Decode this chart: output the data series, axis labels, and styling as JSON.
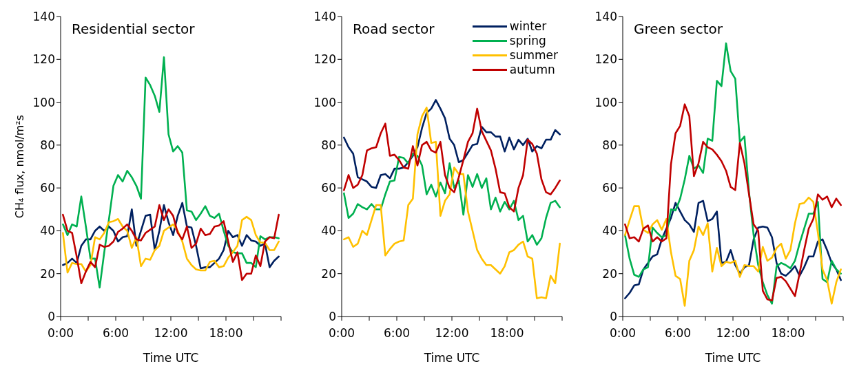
{
  "chart_data": [
    {
      "type": "line",
      "title": "Residential sector",
      "xlabel": "Time UTC",
      "ylabel": "CH₄ flux, nmol/m²s",
      "xlim": [
        0,
        24
      ],
      "ylim": [
        0,
        140
      ],
      "yticks": [
        0,
        20,
        40,
        60,
        80,
        100,
        120,
        140
      ],
      "xticks": [
        {
          "value": 0,
          "label": "0:00"
        },
        {
          "value": 3,
          "label": null
        },
        {
          "value": 6,
          "label": "6:00"
        },
        {
          "value": 9,
          "label": null
        },
        {
          "value": 12,
          "label": "12:00"
        },
        {
          "value": 15,
          "label": null
        },
        {
          "value": 18,
          "label": "18:00"
        },
        {
          "value": 21,
          "label": null
        },
        {
          "value": 24,
          "label": null
        }
      ],
      "x": [
        0.25,
        0.75,
        1.25,
        1.75,
        2.25,
        2.75,
        3.25,
        3.75,
        4.25,
        4.75,
        5.25,
        5.75,
        6.25,
        6.75,
        7.25,
        7.75,
        8.25,
        8.75,
        9.25,
        9.75,
        10.25,
        10.75,
        11.25,
        11.75,
        12.25,
        12.75,
        13.25,
        13.75,
        14.25,
        14.75,
        15.25,
        15.75,
        16.25,
        16.75,
        17.25,
        17.75,
        18.25,
        18.75,
        19.25,
        19.75,
        20.25,
        20.75,
        21.25,
        21.75,
        22.25,
        22.75,
        23.25,
        23.75
      ],
      "legend": false,
      "series": [
        {
          "color": "#002060",
          "values": [
            24,
            25,
            27,
            25,
            33,
            36,
            36,
            40,
            42,
            40,
            42,
            40,
            35,
            37,
            37.5,
            50,
            33,
            40,
            47,
            47.5,
            31,
            40,
            52,
            44,
            38,
            47,
            53,
            42,
            41.5,
            33,
            22.5,
            23,
            23,
            25,
            27,
            31,
            40,
            37,
            38,
            33,
            38,
            35.5,
            35,
            33,
            34,
            23,
            26,
            28
          ]
        },
        {
          "color": "#00b050",
          "values": [
            43,
            38,
            43,
            42,
            56,
            42,
            27,
            27,
            13.5,
            30,
            45,
            61,
            66,
            63,
            68,
            65,
            61,
            55,
            111.5,
            108,
            103,
            95.5,
            121,
            85,
            77,
            79.5,
            76.5,
            49.5,
            49,
            45,
            48,
            51.5,
            47,
            46,
            48,
            40,
            33,
            30,
            29.5,
            29.5,
            25,
            25,
            23,
            37.5,
            36,
            37,
            37,
            36.5
          ]
        },
        {
          "color": "#ffc000",
          "values": [
            39,
            20.5,
            25,
            24.5,
            24.5,
            21,
            24,
            37,
            36,
            39,
            44,
            44.5,
            45.5,
            42,
            40,
            32,
            37,
            23.5,
            27,
            26.5,
            31,
            33,
            40,
            41.5,
            43,
            40,
            35,
            27,
            24,
            22,
            21.5,
            21.5,
            25.5,
            26,
            23,
            23.5,
            27.5,
            30,
            33,
            45,
            46.5,
            45,
            38,
            34.5,
            34.5,
            31,
            31,
            35
          ]
        },
        {
          "color": "#c00000",
          "values": [
            47.5,
            40,
            39,
            28,
            15.5,
            21,
            25.5,
            23,
            33.5,
            32.5,
            33,
            35,
            39.5,
            41,
            43,
            40,
            36,
            35.5,
            39,
            40.5,
            42,
            52,
            45,
            50,
            47,
            39,
            36,
            42,
            32,
            34,
            41,
            38,
            38.5,
            42,
            42.5,
            44.5,
            35,
            25.5,
            30,
            17,
            20,
            20,
            28.5,
            23.5,
            35,
            37,
            36.5,
            47.5
          ]
        }
      ]
    },
    {
      "type": "line",
      "title": "Road sector",
      "xlabel": "Time UTC",
      "xlim": [
        0,
        24
      ],
      "ylim": [
        0,
        140
      ],
      "yticks": [
        0,
        20,
        40,
        60,
        80,
        100,
        120,
        140
      ],
      "xticks": [
        {
          "value": 0,
          "label": "0:00"
        },
        {
          "value": 3,
          "label": null
        },
        {
          "value": 6,
          "label": "6:00"
        },
        {
          "value": 9,
          "label": null
        },
        {
          "value": 12,
          "label": "12:00"
        },
        {
          "value": 15,
          "label": null
        },
        {
          "value": 18,
          "label": "18:00"
        },
        {
          "value": 21,
          "label": null
        },
        {
          "value": 24,
          "label": null
        }
      ],
      "x": [
        0.25,
        0.75,
        1.25,
        1.75,
        2.25,
        2.75,
        3.25,
        3.75,
        4.25,
        4.75,
        5.25,
        5.75,
        6.25,
        6.75,
        7.25,
        7.75,
        8.25,
        8.75,
        9.25,
        9.75,
        10.25,
        10.75,
        11.25,
        11.75,
        12.25,
        12.75,
        13.25,
        13.75,
        14.25,
        14.75,
        15.25,
        15.75,
        16.25,
        16.75,
        17.25,
        17.75,
        18.25,
        18.75,
        19.25,
        19.75,
        20.25,
        20.75,
        21.25,
        21.75,
        22.25,
        22.75,
        23.25,
        23.75
      ],
      "legend": "top right",
      "series": [
        {
          "name": "winter",
          "color": "#002060",
          "values": [
            83.5,
            79,
            76,
            65,
            64,
            63,
            60.5,
            60,
            66,
            66.5,
            64.5,
            69,
            69,
            69.5,
            72,
            75,
            79,
            88,
            95,
            97,
            101,
            97,
            92.5,
            83,
            80,
            72,
            73,
            76.5,
            80,
            80.5,
            88.5,
            86,
            86,
            84,
            84,
            77,
            83.5,
            78,
            82.5,
            80,
            83,
            77,
            79.5,
            78.5,
            82.5,
            82.5,
            87,
            85
          ]
        },
        {
          "name": "spring",
          "color": "#00b050",
          "values": [
            57.5,
            46,
            48,
            52.5,
            51,
            50,
            52.5,
            50,
            50,
            57,
            63,
            63.5,
            74.5,
            74,
            71.5,
            76,
            75,
            70.5,
            57,
            61.5,
            56,
            62.5,
            57.5,
            71.5,
            60,
            63.5,
            47.5,
            66,
            60.5,
            66.5,
            60,
            64.5,
            50,
            55.5,
            49,
            53.5,
            50,
            54,
            45,
            47,
            35,
            38,
            33.5,
            36.5,
            46,
            53,
            54,
            51
          ]
        },
        {
          "name": "summer",
          "color": "#ffc000",
          "values": [
            36,
            37,
            32.5,
            34,
            40,
            38,
            45,
            52,
            52,
            28.5,
            31.5,
            34,
            35,
            35.5,
            52,
            55,
            85,
            93.5,
            97.5,
            81,
            81.5,
            47,
            54,
            57,
            69.5,
            66.5,
            66.5,
            49,
            40,
            31,
            27,
            24,
            24,
            22,
            20,
            23.5,
            30,
            31,
            33.5,
            35,
            28,
            27,
            8.5,
            9,
            8.5,
            19,
            15.5,
            34
          ]
        },
        {
          "name": "autumn",
          "color": "#c00000",
          "values": [
            59,
            66,
            60,
            61.5,
            66,
            77.5,
            78.5,
            79,
            85.5,
            90,
            75,
            75.5,
            73,
            69.5,
            69,
            79.5,
            70.5,
            80,
            81.5,
            77.5,
            76.5,
            81.5,
            66,
            60,
            58,
            65,
            73,
            81.5,
            85.5,
            97,
            86.5,
            82,
            77.5,
            69,
            58,
            57.5,
            51,
            49,
            60,
            66,
            82.5,
            80.5,
            76,
            64,
            58,
            57,
            60,
            63.5
          ]
        }
      ]
    },
    {
      "type": "line",
      "title": "Green sector",
      "xlabel": "Time UTC",
      "xlim": [
        0,
        24
      ],
      "ylim": [
        0,
        140
      ],
      "yticks": [
        0,
        20,
        40,
        60,
        80,
        100,
        120,
        140
      ],
      "xticks": [
        {
          "value": 0,
          "label": "0:00"
        },
        {
          "value": 3,
          "label": null
        },
        {
          "value": 6,
          "label": "6:00"
        },
        {
          "value": 9,
          "label": null
        },
        {
          "value": 12,
          "label": "12:00"
        },
        {
          "value": 15,
          "label": null
        },
        {
          "value": 18,
          "label": "18:00"
        },
        {
          "value": 21,
          "label": null
        },
        {
          "value": 24,
          "label": null
        }
      ],
      "x": [
        0.25,
        0.75,
        1.25,
        1.75,
        2.25,
        2.75,
        3.25,
        3.75,
        4.25,
        4.75,
        5.25,
        5.75,
        6.25,
        6.75,
        7.25,
        7.75,
        8.25,
        8.75,
        9.25,
        9.75,
        10.25,
        10.75,
        11.25,
        11.75,
        12.25,
        12.75,
        13.25,
        13.75,
        14.25,
        14.75,
        15.25,
        15.75,
        16.25,
        16.75,
        17.25,
        17.75,
        18.25,
        18.75,
        19.25,
        19.75,
        20.25,
        20.75,
        21.25,
        21.75,
        22.25,
        22.75,
        23.25,
        23.75
      ],
      "legend": false,
      "series": [
        {
          "color": "#002060",
          "values": [
            8.5,
            11,
            14.5,
            15,
            22,
            25,
            28,
            29,
            36,
            41,
            46,
            53,
            49,
            45,
            43,
            39.5,
            53,
            54,
            44.5,
            45.5,
            49,
            25,
            25.5,
            31,
            24,
            20,
            23,
            24,
            36,
            41.5,
            42,
            41.5,
            37,
            25,
            20,
            19,
            21,
            23.5,
            19,
            23,
            28,
            28,
            35,
            36,
            31,
            25,
            22,
            17
          ]
        },
        {
          "color": "#00b050",
          "values": [
            38,
            27,
            19.5,
            18.5,
            22,
            23,
            41.5,
            39,
            37,
            38,
            50,
            49.5,
            55,
            64,
            75,
            69,
            70.5,
            67,
            83,
            82,
            110,
            107.5,
            127.5,
            114.5,
            111,
            81.5,
            84,
            58,
            38,
            24,
            16,
            10,
            6,
            23.5,
            25,
            24,
            22.5,
            26,
            34,
            41,
            48,
            48,
            53.5,
            17.5,
            16,
            26,
            22,
            20
          ]
        },
        {
          "color": "#ffc000",
          "values": [
            38,
            45,
            51.5,
            51.5,
            40.5,
            39,
            43,
            45,
            40.5,
            45.5,
            30,
            19,
            17.5,
            5,
            26,
            31,
            42,
            38,
            43.5,
            21,
            32,
            23.5,
            25.5,
            25,
            26,
            18.5,
            24,
            23.5,
            23.5,
            21,
            32.5,
            26,
            27.5,
            32,
            34,
            27,
            31,
            43.5,
            52.5,
            53,
            55.5,
            53.5,
            39,
            22,
            17,
            6,
            16,
            22
          ]
        },
        {
          "color": "#c00000",
          "values": [
            43,
            36.5,
            37,
            35,
            41,
            42.5,
            35,
            37,
            35,
            36.5,
            71,
            85.5,
            89,
            99,
            93.5,
            65.5,
            71.5,
            81.5,
            79,
            78,
            75.5,
            72.5,
            68,
            60.5,
            59,
            81,
            71.5,
            57,
            43,
            40,
            12,
            8,
            7.5,
            18,
            18.5,
            16.5,
            13,
            9.5,
            20,
            31,
            41,
            45.5,
            57,
            54.5,
            56,
            51,
            55,
            52
          ]
        }
      ]
    }
  ]
}
